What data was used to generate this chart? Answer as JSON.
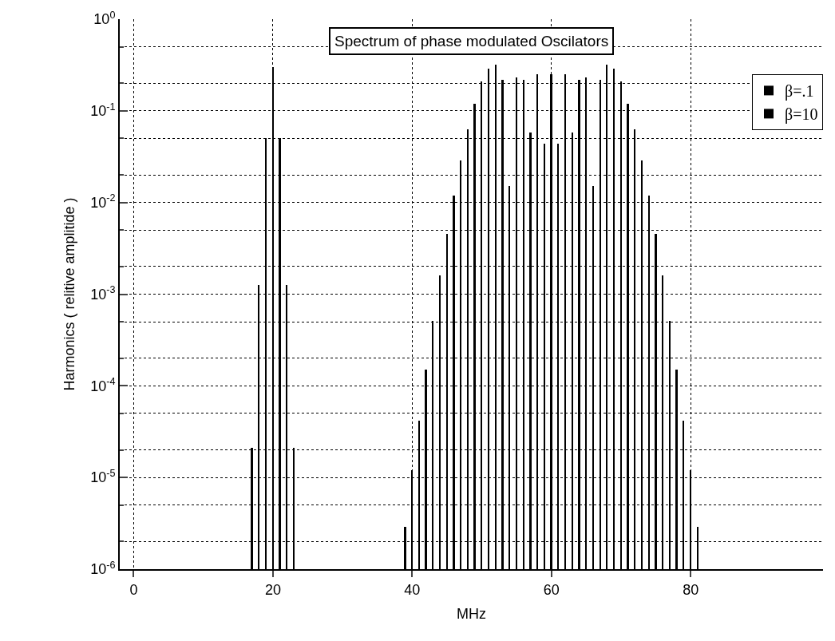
{
  "chart_data": {
    "type": "bar",
    "title": "Spectrum of phase modulated Oscilators",
    "xlabel": "MHz",
    "ylabel": "Harmonics ( relitive amplitide )",
    "series": [
      {
        "name": "β=.1",
        "color": "#000000",
        "x": [
          17,
          18,
          19,
          20,
          21,
          22,
          23
        ],
        "values": [
          2.1e-05,
          0.00125,
          0.05,
          0.3,
          0.05,
          0.00125,
          2.1e-05
        ]
      },
      {
        "name": "β=10",
        "color": "#000000",
        "x": [
          39,
          40,
          41,
          42,
          43,
          44,
          45,
          46,
          47,
          48,
          49,
          50,
          51,
          52,
          53,
          54,
          55,
          56,
          57,
          58,
          59,
          60,
          61,
          62,
          63,
          64,
          65,
          66,
          67,
          68,
          69,
          70,
          71,
          72,
          73,
          74,
          75,
          76,
          77,
          78,
          79,
          80,
          81
        ],
        "values": [
          2.9e-06,
          1.2e-05,
          4.2e-05,
          0.00015,
          0.00051,
          0.0016,
          0.0045,
          0.012,
          0.029,
          0.063,
          0.12,
          0.21,
          0.29,
          0.32,
          0.22,
          0.015,
          0.23,
          0.22,
          0.058,
          0.25,
          0.044,
          0.25,
          0.044,
          0.25,
          0.058,
          0.22,
          0.23,
          0.015,
          0.22,
          0.32,
          0.29,
          0.21,
          0.12,
          0.063,
          0.029,
          0.012,
          0.0045,
          0.0016,
          0.00051,
          0.00015,
          4.2e-05,
          1.2e-05,
          2.9e-06
        ]
      }
    ],
    "xlim": [
      -2,
      99
    ],
    "xticks": [
      0,
      20,
      40,
      60,
      80
    ],
    "ylim": [
      1e-06,
      1
    ],
    "yticks": [
      {
        "value": 1e-06,
        "label": "10$^{-6}$"
      },
      {
        "value": 1e-05,
        "label": "10$^{-5}$"
      },
      {
        "value": 0.0001,
        "label": "10$^{-4}$"
      },
      {
        "value": 0.001,
        "label": "10$^{-3}$"
      },
      {
        "value": 0.01,
        "label": "10$^{-2}$"
      },
      {
        "value": 0.1,
        "label": "10$^{-1}$"
      },
      {
        "value": 1,
        "label": "10$^{0}$"
      }
    ],
    "log": "y",
    "grid": true,
    "legend": "top right"
  }
}
